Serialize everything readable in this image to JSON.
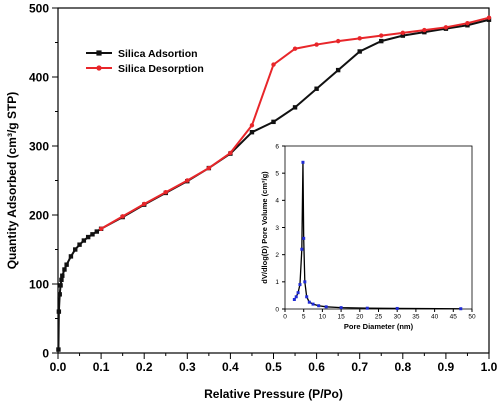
{
  "chart_data": [
    {
      "type": "line",
      "xlabel": "Relative Pressure (P/Po)",
      "ylabel": "Quantity Adsorbed (cm³/g STP)",
      "xlim": [
        0.0,
        1.0
      ],
      "ylim": [
        0,
        500
      ],
      "xticks": [
        "0.0",
        "0.1",
        "0.2",
        "0.3",
        "0.4",
        "0.5",
        "0.6",
        "0.7",
        "0.8",
        "0.9",
        "1.0"
      ],
      "yticks": [
        "0",
        "100",
        "200",
        "300",
        "400",
        "500"
      ],
      "legend_position": "top-left",
      "series": [
        {
          "name": "Silica Adsortion",
          "color": "#111111",
          "marker": "square",
          "x": [
            0.001,
            0.002,
            0.004,
            0.006,
            0.008,
            0.01,
            0.015,
            0.02,
            0.03,
            0.04,
            0.05,
            0.06,
            0.07,
            0.08,
            0.09,
            0.1,
            0.15,
            0.2,
            0.25,
            0.3,
            0.35,
            0.4,
            0.45,
            0.5,
            0.55,
            0.6,
            0.65,
            0.7,
            0.75,
            0.8,
            0.85,
            0.9,
            0.95,
            1.0
          ],
          "y": [
            5,
            60,
            85,
            98,
            106,
            112,
            121,
            128,
            140,
            150,
            157,
            163,
            168,
            172,
            176,
            180,
            197,
            215,
            232,
            249,
            268,
            289,
            320,
            335,
            356,
            383,
            410,
            437,
            452,
            460,
            465,
            470,
            475,
            483
          ]
        },
        {
          "name": "Silica Desorption",
          "color": "#e8262a",
          "marker": "circle",
          "x": [
            0.1,
            0.15,
            0.2,
            0.25,
            0.3,
            0.35,
            0.4,
            0.45,
            0.5,
            0.55,
            0.6,
            0.65,
            0.7,
            0.75,
            0.8,
            0.85,
            0.9,
            0.95,
            1.0
          ],
          "y": [
            180,
            198,
            216,
            233,
            250,
            268,
            290,
            330,
            418,
            441,
            447,
            452,
            456,
            460,
            464,
            468,
            472,
            478,
            486
          ]
        }
      ]
    },
    {
      "type": "line",
      "xlabel": "Pore Diameter (nm)",
      "ylabel": "dV/dlog(D) Pore Volume (cm³/g)",
      "xlim": [
        0,
        50
      ],
      "ylim": [
        0,
        6
      ],
      "xticks": [
        "0",
        "5",
        "10",
        "15",
        "20",
        "25",
        "30",
        "35",
        "40",
        "45",
        "50"
      ],
      "yticks": [
        "0",
        "1",
        "2",
        "3",
        "4",
        "5",
        "6"
      ],
      "series": [
        {
          "line_color": "#000000",
          "marker_color": "#1f2bd6",
          "x": [
            2.5,
            3.0,
            3.5,
            4.0,
            4.5,
            4.8,
            5.0,
            5.3,
            5.8,
            6.5,
            7.5,
            9,
            11,
            15,
            22,
            30,
            47
          ],
          "y": [
            0.35,
            0.45,
            0.6,
            0.9,
            2.2,
            5.4,
            2.6,
            1.0,
            0.45,
            0.25,
            0.18,
            0.12,
            0.08,
            0.05,
            0.03,
            0.02,
            0.01
          ]
        }
      ]
    }
  ]
}
